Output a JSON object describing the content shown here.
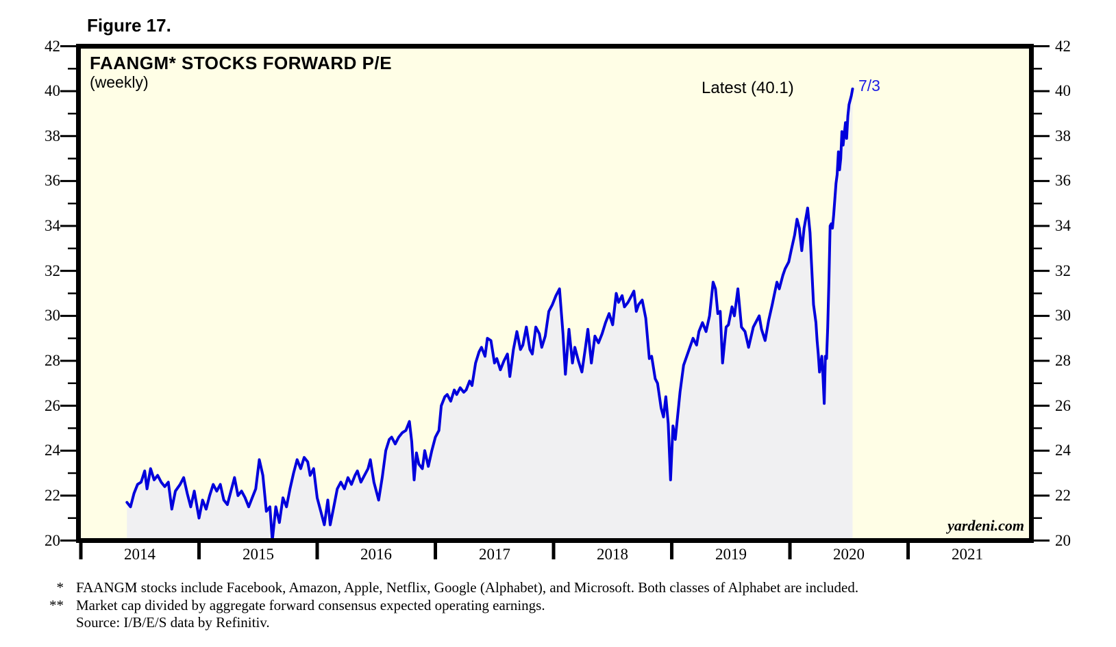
{
  "figure_label": "Figure 17.",
  "header": {
    "title": "FAANGM* STOCKS FORWARD P/E",
    "subtitle": "(weekly)"
  },
  "annotations": {
    "latest_label": "Latest (40.1)",
    "latest_date_label": "7/3"
  },
  "watermark": "yardeni.com",
  "footnotes": [
    {
      "marker": "*",
      "text": "FAANGM stocks include Facebook, Amazon, Apple, Netflix, Google (Alphabet), and Microsoft. Both classes of Alphabet are included."
    },
    {
      "marker": "**",
      "text": "Market cap divided by aggregate forward consensus expected operating earnings."
    },
    {
      "marker": "",
      "text": "Source: I/B/E/S data by Refinitiv."
    }
  ],
  "colors": {
    "plot_background": "#FFFEE6",
    "area_fill": "#F0F0F2",
    "line": "#0000DC",
    "annotation_blue": "#1B1BE4",
    "axis_black": "#000000"
  },
  "chart_data": {
    "type": "line",
    "title": "FAANGM* STOCKS FORWARD P/E",
    "subtitle": "(weekly)",
    "legend": "none",
    "grid": false,
    "area_fill": true,
    "latest_value": 40.1,
    "latest_date": "7/3",
    "x_axis": {
      "range": [
        2014.0,
        2022.02
      ],
      "year_ticks": [
        2014,
        2015,
        2016,
        2017,
        2018,
        2019,
        2020,
        2021
      ],
      "tick_labels": [
        "2014",
        "2015",
        "2016",
        "2017",
        "2018",
        "2019",
        "2020",
        "2021"
      ],
      "labels_centered_mid_year": true
    },
    "y_axis": {
      "range": [
        20,
        42
      ],
      "major_ticks": [
        20,
        22,
        24,
        26,
        28,
        30,
        32,
        34,
        36,
        38,
        40,
        42
      ],
      "minor_ticks": [
        21,
        23,
        25,
        27,
        29,
        31,
        33,
        35,
        37,
        39,
        41
      ],
      "sides": "both"
    },
    "series": [
      {
        "name": "FAANGM forward P/E (weekly)",
        "points": [
          [
            2014.39,
            21.7
          ],
          [
            2014.42,
            21.5
          ],
          [
            2014.45,
            22.1
          ],
          [
            2014.48,
            22.5
          ],
          [
            2014.51,
            22.6
          ],
          [
            2014.54,
            23.1
          ],
          [
            2014.56,
            22.3
          ],
          [
            2014.59,
            23.2
          ],
          [
            2014.62,
            22.7
          ],
          [
            2014.65,
            22.9
          ],
          [
            2014.68,
            22.6
          ],
          [
            2014.71,
            22.4
          ],
          [
            2014.74,
            22.6
          ],
          [
            2014.77,
            21.4
          ],
          [
            2014.8,
            22.2
          ],
          [
            2014.84,
            22.5
          ],
          [
            2014.87,
            22.8
          ],
          [
            2014.9,
            22.1
          ],
          [
            2014.93,
            21.5
          ],
          [
            2014.96,
            22.2
          ],
          [
            2015.0,
            21.0
          ],
          [
            2015.03,
            21.8
          ],
          [
            2015.06,
            21.4
          ],
          [
            2015.09,
            22.0
          ],
          [
            2015.12,
            22.5
          ],
          [
            2015.15,
            22.2
          ],
          [
            2015.18,
            22.5
          ],
          [
            2015.21,
            21.8
          ],
          [
            2015.24,
            21.6
          ],
          [
            2015.27,
            22.2
          ],
          [
            2015.3,
            22.8
          ],
          [
            2015.33,
            22.0
          ],
          [
            2015.36,
            22.2
          ],
          [
            2015.39,
            21.9
          ],
          [
            2015.42,
            21.5
          ],
          [
            2015.45,
            21.9
          ],
          [
            2015.48,
            22.3
          ],
          [
            2015.51,
            23.6
          ],
          [
            2015.54,
            22.9
          ],
          [
            2015.57,
            21.3
          ],
          [
            2015.6,
            21.5
          ],
          [
            2015.62,
            20.0
          ],
          [
            2015.65,
            21.5
          ],
          [
            2015.68,
            20.8
          ],
          [
            2015.71,
            21.9
          ],
          [
            2015.74,
            21.5
          ],
          [
            2015.77,
            22.3
          ],
          [
            2015.8,
            23.0
          ],
          [
            2015.83,
            23.6
          ],
          [
            2015.86,
            23.2
          ],
          [
            2015.89,
            23.7
          ],
          [
            2015.92,
            23.5
          ],
          [
            2015.94,
            22.9
          ],
          [
            2015.97,
            23.2
          ],
          [
            2016.0,
            21.9
          ],
          [
            2016.03,
            21.3
          ],
          [
            2016.06,
            20.7
          ],
          [
            2016.09,
            21.8
          ],
          [
            2016.11,
            20.7
          ],
          [
            2016.14,
            21.5
          ],
          [
            2016.17,
            22.3
          ],
          [
            2016.2,
            22.6
          ],
          [
            2016.23,
            22.3
          ],
          [
            2016.26,
            22.8
          ],
          [
            2016.29,
            22.5
          ],
          [
            2016.32,
            22.9
          ],
          [
            2016.34,
            23.1
          ],
          [
            2016.37,
            22.6
          ],
          [
            2016.4,
            22.9
          ],
          [
            2016.43,
            23.2
          ],
          [
            2016.45,
            23.6
          ],
          [
            2016.48,
            22.6
          ],
          [
            2016.52,
            21.8
          ],
          [
            2016.55,
            22.8
          ],
          [
            2016.58,
            24.0
          ],
          [
            2016.61,
            24.5
          ],
          [
            2016.63,
            24.6
          ],
          [
            2016.66,
            24.3
          ],
          [
            2016.69,
            24.6
          ],
          [
            2016.72,
            24.8
          ],
          [
            2016.75,
            24.9
          ],
          [
            2016.78,
            25.3
          ],
          [
            2016.8,
            24.4
          ],
          [
            2016.82,
            22.7
          ],
          [
            2016.84,
            23.9
          ],
          [
            2016.86,
            23.4
          ],
          [
            2016.89,
            23.2
          ],
          [
            2016.91,
            24.0
          ],
          [
            2016.94,
            23.3
          ],
          [
            2016.97,
            24.0
          ],
          [
            2017.0,
            24.6
          ],
          [
            2017.03,
            24.9
          ],
          [
            2017.05,
            26.0
          ],
          [
            2017.08,
            26.4
          ],
          [
            2017.1,
            26.5
          ],
          [
            2017.13,
            26.2
          ],
          [
            2017.16,
            26.7
          ],
          [
            2017.18,
            26.5
          ],
          [
            2017.21,
            26.8
          ],
          [
            2017.24,
            26.6
          ],
          [
            2017.26,
            26.7
          ],
          [
            2017.29,
            27.1
          ],
          [
            2017.31,
            26.9
          ],
          [
            2017.34,
            27.9
          ],
          [
            2017.37,
            28.4
          ],
          [
            2017.39,
            28.6
          ],
          [
            2017.42,
            28.2
          ],
          [
            2017.44,
            29.0
          ],
          [
            2017.47,
            28.9
          ],
          [
            2017.5,
            27.9
          ],
          [
            2017.52,
            28.1
          ],
          [
            2017.55,
            27.6
          ],
          [
            2017.58,
            28.0
          ],
          [
            2017.61,
            28.3
          ],
          [
            2017.63,
            27.3
          ],
          [
            2017.66,
            28.5
          ],
          [
            2017.69,
            29.3
          ],
          [
            2017.72,
            28.5
          ],
          [
            2017.74,
            28.7
          ],
          [
            2017.77,
            29.5
          ],
          [
            2017.8,
            28.5
          ],
          [
            2017.82,
            28.3
          ],
          [
            2017.85,
            29.5
          ],
          [
            2017.88,
            29.2
          ],
          [
            2017.9,
            28.6
          ],
          [
            2017.93,
            29.1
          ],
          [
            2017.96,
            30.2
          ],
          [
            2017.99,
            30.5
          ],
          [
            2018.02,
            30.9
          ],
          [
            2018.05,
            31.2
          ],
          [
            2018.08,
            29.2
          ],
          [
            2018.1,
            27.4
          ],
          [
            2018.13,
            29.4
          ],
          [
            2018.16,
            27.9
          ],
          [
            2018.18,
            28.6
          ],
          [
            2018.21,
            28.0
          ],
          [
            2018.24,
            27.5
          ],
          [
            2018.27,
            28.6
          ],
          [
            2018.29,
            29.4
          ],
          [
            2018.32,
            27.9
          ],
          [
            2018.35,
            29.1
          ],
          [
            2018.38,
            28.8
          ],
          [
            2018.41,
            29.2
          ],
          [
            2018.44,
            29.7
          ],
          [
            2018.47,
            30.1
          ],
          [
            2018.5,
            29.6
          ],
          [
            2018.53,
            31.0
          ],
          [
            2018.55,
            30.6
          ],
          [
            2018.58,
            30.9
          ],
          [
            2018.6,
            30.4
          ],
          [
            2018.63,
            30.6
          ],
          [
            2018.66,
            30.9
          ],
          [
            2018.68,
            31.1
          ],
          [
            2018.7,
            30.2
          ],
          [
            2018.72,
            30.5
          ],
          [
            2018.75,
            30.7
          ],
          [
            2018.78,
            29.9
          ],
          [
            2018.81,
            28.1
          ],
          [
            2018.83,
            28.2
          ],
          [
            2018.86,
            27.2
          ],
          [
            2018.88,
            27.0
          ],
          [
            2018.91,
            25.9
          ],
          [
            2018.93,
            25.5
          ],
          [
            2018.95,
            26.4
          ],
          [
            2018.97,
            25.2
          ],
          [
            2018.99,
            22.7
          ],
          [
            2019.01,
            25.1
          ],
          [
            2019.03,
            24.5
          ],
          [
            2019.07,
            26.6
          ],
          [
            2019.1,
            27.8
          ],
          [
            2019.14,
            28.4
          ],
          [
            2019.18,
            29.0
          ],
          [
            2019.21,
            28.7
          ],
          [
            2019.23,
            29.3
          ],
          [
            2019.26,
            29.7
          ],
          [
            2019.29,
            29.3
          ],
          [
            2019.32,
            30.0
          ],
          [
            2019.35,
            31.5
          ],
          [
            2019.37,
            31.2
          ],
          [
            2019.39,
            30.1
          ],
          [
            2019.41,
            30.2
          ],
          [
            2019.43,
            27.9
          ],
          [
            2019.46,
            29.5
          ],
          [
            2019.48,
            29.6
          ],
          [
            2019.51,
            30.4
          ],
          [
            2019.53,
            30.0
          ],
          [
            2019.56,
            31.2
          ],
          [
            2019.59,
            29.5
          ],
          [
            2019.62,
            29.3
          ],
          [
            2019.65,
            28.6
          ],
          [
            2019.69,
            29.5
          ],
          [
            2019.71,
            29.7
          ],
          [
            2019.74,
            30.0
          ],
          [
            2019.76,
            29.4
          ],
          [
            2019.79,
            28.9
          ],
          [
            2019.82,
            29.8
          ],
          [
            2019.85,
            30.5
          ],
          [
            2019.87,
            31.0
          ],
          [
            2019.89,
            31.5
          ],
          [
            2019.91,
            31.2
          ],
          [
            2019.94,
            31.8
          ],
          [
            2019.96,
            32.1
          ],
          [
            2019.99,
            32.4
          ],
          [
            2020.01,
            32.9
          ],
          [
            2020.04,
            33.6
          ],
          [
            2020.06,
            34.3
          ],
          [
            2020.08,
            33.9
          ],
          [
            2020.1,
            32.9
          ],
          [
            2020.12,
            33.9
          ],
          [
            2020.15,
            34.8
          ],
          [
            2020.17,
            33.7
          ],
          [
            2020.18,
            32.6
          ],
          [
            2020.2,
            30.5
          ],
          [
            2020.22,
            29.7
          ],
          [
            2020.23,
            28.9
          ],
          [
            2020.24,
            28.3
          ],
          [
            2020.25,
            27.5
          ],
          [
            2020.27,
            28.2
          ],
          [
            2020.28,
            27.3
          ],
          [
            2020.29,
            26.1
          ],
          [
            2020.3,
            28.2
          ],
          [
            2020.31,
            28.1
          ],
          [
            2020.32,
            29.5
          ],
          [
            2020.33,
            31.6
          ],
          [
            2020.34,
            34.0
          ],
          [
            2020.35,
            34.1
          ],
          [
            2020.36,
            33.9
          ],
          [
            2020.37,
            34.5
          ],
          [
            2020.38,
            35.2
          ],
          [
            2020.39,
            35.9
          ],
          [
            2020.4,
            36.3
          ],
          [
            2020.41,
            37.3
          ],
          [
            2020.42,
            36.5
          ],
          [
            2020.43,
            37.0
          ],
          [
            2020.44,
            38.2
          ],
          [
            2020.45,
            37.6
          ],
          [
            2020.47,
            38.6
          ],
          [
            2020.48,
            37.9
          ],
          [
            2020.49,
            38.9
          ],
          [
            2020.5,
            39.4
          ],
          [
            2020.52,
            39.8
          ],
          [
            2020.53,
            40.1
          ]
        ]
      }
    ]
  }
}
